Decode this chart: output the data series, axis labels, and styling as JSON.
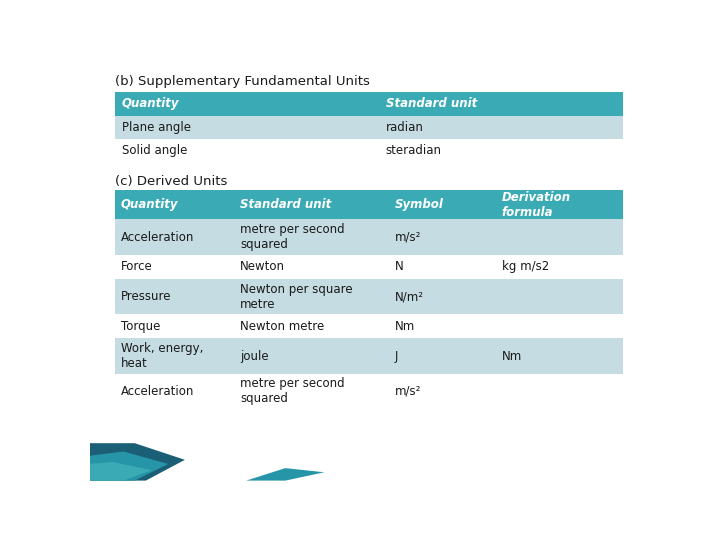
{
  "title_b": "(b) Supplementary Fundamental Units",
  "title_c": "(c) Derived Units",
  "header_color": "#3AABB5",
  "row_color_light": "#C5DCE2",
  "row_color_white": "#FFFFFF",
  "text_color_header": "#FFFFFF",
  "text_color_body": "#1a1a1a",
  "table_b_headers": [
    "Quantity",
    "Standard unit"
  ],
  "table_b_rows": [
    [
      "Plane angle",
      "radian"
    ],
    [
      "Solid angle",
      "steradian"
    ]
  ],
  "table_c_headers": [
    "Quantity",
    "Standard unit",
    "Symbol",
    "Derivation\nformula"
  ],
  "table_c_rows": [
    [
      "Acceleration",
      "metre per second\nsquared",
      "m/s²",
      ""
    ],
    [
      "Force",
      "Newton",
      "N",
      "kg m/s2"
    ],
    [
      "Pressure",
      "Newton per square\nmetre",
      "N/m²",
      ""
    ],
    [
      "Torque",
      "Newton metre",
      "Nm",
      ""
    ],
    [
      "Work, energy,\nheat",
      "joule",
      "J",
      "Nm"
    ],
    [
      "Acceleration",
      "metre per second\nsquared",
      "m/s²",
      ""
    ]
  ],
  "bg_color": "#FFFFFF",
  "title_fontsize": 9.5,
  "header_fontsize": 8.5,
  "body_fontsize": 8.5,
  "wave_color1": "#1B5E7A",
  "wave_color2": "#2B9BAA",
  "wave_color3": "#3AABB5"
}
